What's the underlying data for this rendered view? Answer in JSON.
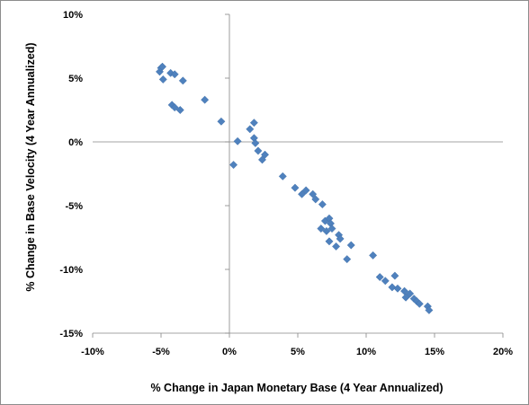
{
  "chart_data": {
    "type": "scatter",
    "title": "",
    "xlabel": "% Change in Japan Monetary Base (4 Year Annualized)",
    "ylabel": "% Change in Base Velocity (4 Year Annualized)",
    "xlim": [
      -10,
      20
    ],
    "ylim": [
      -15,
      10
    ],
    "x_ticks": [
      -10,
      -5,
      0,
      5,
      10,
      15,
      20
    ],
    "x_tick_labels": [
      "-10%",
      "-5%",
      "0%",
      "5%",
      "10%",
      "15%",
      "20%"
    ],
    "y_ticks": [
      10,
      5,
      0,
      -5,
      -10,
      -15
    ],
    "y_tick_labels": [
      "10%",
      "5%",
      "0%",
      "-5%",
      "-10%",
      "-15%"
    ],
    "grid": false,
    "legend": "none",
    "marker_color": "#4f81bd",
    "marker_shape": "diamond",
    "points": [
      {
        "x": -5.1,
        "y": 5.5
      },
      {
        "x": -5.0,
        "y": 5.8
      },
      {
        "x": -4.9,
        "y": 5.9
      },
      {
        "x": -4.85,
        "y": 4.9
      },
      {
        "x": -4.3,
        "y": 5.4
      },
      {
        "x": -4.0,
        "y": 5.3
      },
      {
        "x": -3.4,
        "y": 4.8
      },
      {
        "x": -4.2,
        "y": 2.9
      },
      {
        "x": -4.0,
        "y": 2.7
      },
      {
        "x": -3.6,
        "y": 2.5
      },
      {
        "x": -1.8,
        "y": 3.3
      },
      {
        "x": -0.6,
        "y": 1.6
      },
      {
        "x": 0.3,
        "y": -1.8
      },
      {
        "x": 0.6,
        "y": 0.05
      },
      {
        "x": 1.5,
        "y": 1.0
      },
      {
        "x": 1.8,
        "y": 1.5
      },
      {
        "x": 1.8,
        "y": 0.3
      },
      {
        "x": 1.9,
        "y": -0.1
      },
      {
        "x": 2.1,
        "y": -0.7
      },
      {
        "x": 2.4,
        "y": -1.4
      },
      {
        "x": 2.6,
        "y": -1.0
      },
      {
        "x": 3.9,
        "y": -2.7
      },
      {
        "x": 4.8,
        "y": -3.6
      },
      {
        "x": 5.3,
        "y": -4.1
      },
      {
        "x": 5.6,
        "y": -3.8
      },
      {
        "x": 6.1,
        "y": -4.1
      },
      {
        "x": 6.3,
        "y": -4.5
      },
      {
        "x": 6.8,
        "y": -4.9
      },
      {
        "x": 6.7,
        "y": -6.8
      },
      {
        "x": 7.0,
        "y": -6.2
      },
      {
        "x": 7.1,
        "y": -7.0
      },
      {
        "x": 7.3,
        "y": -6.0
      },
      {
        "x": 7.4,
        "y": -6.4
      },
      {
        "x": 7.5,
        "y": -6.8
      },
      {
        "x": 7.3,
        "y": -7.8
      },
      {
        "x": 7.8,
        "y": -8.2
      },
      {
        "x": 8.0,
        "y": -7.3
      },
      {
        "x": 8.1,
        "y": -7.6
      },
      {
        "x": 8.6,
        "y": -9.2
      },
      {
        "x": 8.9,
        "y": -8.1
      },
      {
        "x": 10.5,
        "y": -8.9
      },
      {
        "x": 11.0,
        "y": -10.6
      },
      {
        "x": 11.4,
        "y": -10.9
      },
      {
        "x": 11.9,
        "y": -11.4
      },
      {
        "x": 12.1,
        "y": -10.5
      },
      {
        "x": 12.3,
        "y": -11.5
      },
      {
        "x": 12.8,
        "y": -11.7
      },
      {
        "x": 12.9,
        "y": -12.2
      },
      {
        "x": 13.2,
        "y": -11.9
      },
      {
        "x": 13.5,
        "y": -12.3
      },
      {
        "x": 13.7,
        "y": -12.5
      },
      {
        "x": 13.9,
        "y": -12.7
      },
      {
        "x": 14.5,
        "y": -12.9
      },
      {
        "x": 14.6,
        "y": -13.2
      }
    ]
  }
}
